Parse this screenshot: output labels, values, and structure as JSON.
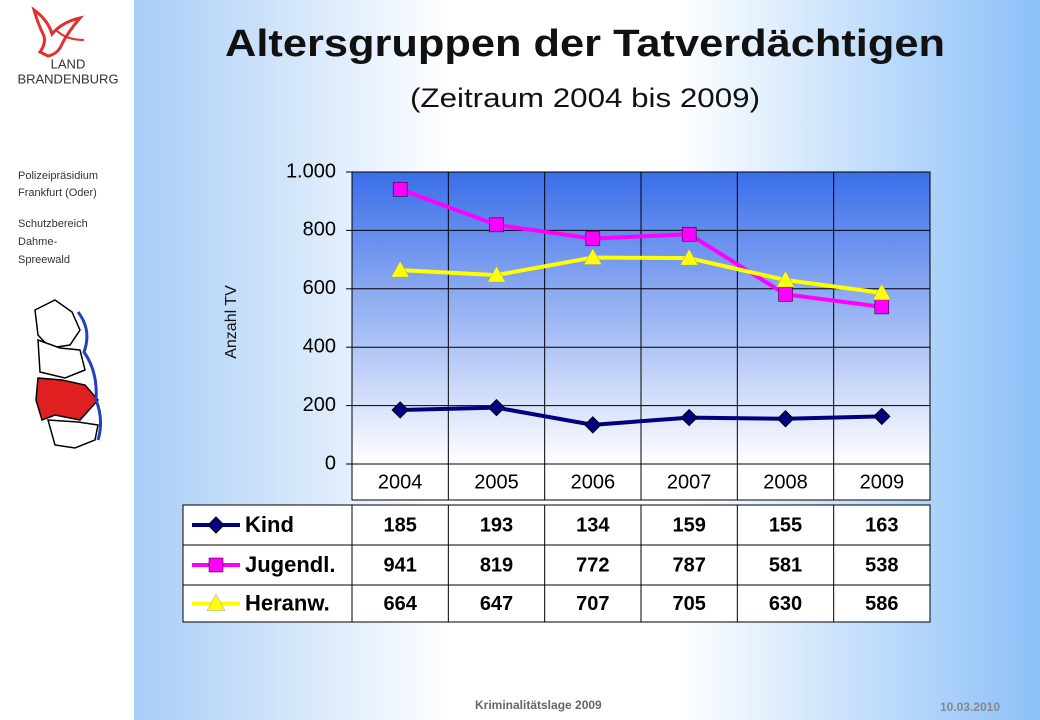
{
  "sidebar": {
    "logo": [
      "LAND",
      "BRANDENBURG"
    ],
    "org": [
      "Polizeipräsidium",
      "Frankfurt (Oder)"
    ],
    "unit": [
      "Schutzbereich",
      "Dahme-",
      "Spreewald"
    ]
  },
  "chart_data": {
    "type": "line",
    "title": "Altersgruppen der Tatverdächtigen",
    "subtitle": "(Zeitraum 2004 bis 2009)",
    "y_label": "Anzahl TV",
    "categories": [
      "2004",
      "2005",
      "2006",
      "2007",
      "2008",
      "2009"
    ],
    "series": [
      {
        "name": "Kind",
        "color": "#000080",
        "marker": "diamond",
        "values": [
          185,
          193,
          134,
          159,
          155,
          163
        ]
      },
      {
        "name": "Jugendl.",
        "color": "#ff00ff",
        "marker": "square",
        "values": [
          941,
          819,
          772,
          787,
          581,
          538
        ]
      },
      {
        "name": "Heranw.",
        "color": "#ffff00",
        "marker": "triangle",
        "values": [
          664,
          647,
          707,
          705,
          630,
          586
        ]
      }
    ],
    "ylim": [
      0,
      1000
    ],
    "yticks": [
      0,
      200,
      400,
      600,
      800,
      {
        "value": 1000,
        "label": "1.000"
      }
    ],
    "grid": true,
    "data_table": true
  },
  "footer": {
    "left": "Kriminalitätslage 2009",
    "right": "10.03.2010"
  }
}
